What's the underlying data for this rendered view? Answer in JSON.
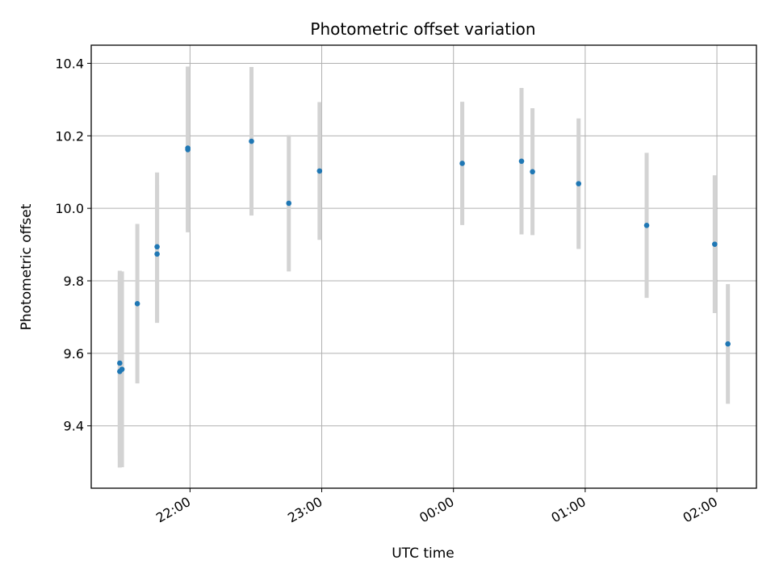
{
  "chart_data": {
    "type": "scatter",
    "title": "Photometric offset variation",
    "xlabel": "UTC time",
    "ylabel": "Photometric offset",
    "x_ticks": [
      "22:00",
      "23:00",
      "00:00",
      "01:00",
      "02:00"
    ],
    "x_tick_times": [
      "2000-01-01 22:00",
      "2000-01-01 23:00",
      "2000-01-02 00:00",
      "2000-01-02 01:00",
      "2000-01-02 02:00"
    ],
    "xlim": [
      "2000-01-01 21:15",
      "2000-01-02 02:18"
    ],
    "y_ticks": [
      9.4,
      9.6,
      9.8,
      10.0,
      10.2,
      10.4
    ],
    "y_tick_labels": [
      "9.4",
      "9.6",
      "9.8",
      "10.0",
      "10.2",
      "10.4"
    ],
    "ylim": [
      9.228,
      10.45
    ],
    "grid": true,
    "marker_color": "#1f77b4",
    "errorbar_color": "#d3d3d3",
    "points": [
      {
        "time": "2000-01-01 21:28",
        "y": 9.55,
        "err": 0.265
      },
      {
        "time": "2000-01-01 21:28",
        "y": 9.573,
        "err": 0.255
      },
      {
        "time": "2000-01-01 21:29",
        "y": 9.556,
        "err": 0.27
      },
      {
        "time": "2000-01-01 21:36",
        "y": 9.737,
        "err": 0.22
      },
      {
        "time": "2000-01-01 21:45",
        "y": 9.894,
        "err": 0.205
      },
      {
        "time": "2000-01-01 21:45",
        "y": 9.874,
        "err": 0.19
      },
      {
        "time": "2000-01-01 21:59",
        "y": 10.166,
        "err": 0.225
      },
      {
        "time": "2000-01-01 21:59",
        "y": 10.162,
        "err": 0.228
      },
      {
        "time": "2000-01-01 22:28",
        "y": 10.185,
        "err": 0.205
      },
      {
        "time": "2000-01-01 22:45",
        "y": 10.014,
        "err": 0.188
      },
      {
        "time": "2000-01-01 22:59",
        "y": 10.103,
        "err": 0.19
      },
      {
        "time": "2000-01-02 00:04",
        "y": 10.124,
        "err": 0.17
      },
      {
        "time": "2000-01-02 00:31",
        "y": 10.13,
        "err": 0.202
      },
      {
        "time": "2000-01-02 00:36",
        "y": 10.101,
        "err": 0.175
      },
      {
        "time": "2000-01-02 00:57",
        "y": 10.068,
        "err": 0.18
      },
      {
        "time": "2000-01-02 01:28",
        "y": 9.953,
        "err": 0.2
      },
      {
        "time": "2000-01-02 01:59",
        "y": 9.901,
        "err": 0.19
      },
      {
        "time": "2000-01-02 02:05",
        "y": 9.626,
        "err": 0.165
      }
    ]
  }
}
